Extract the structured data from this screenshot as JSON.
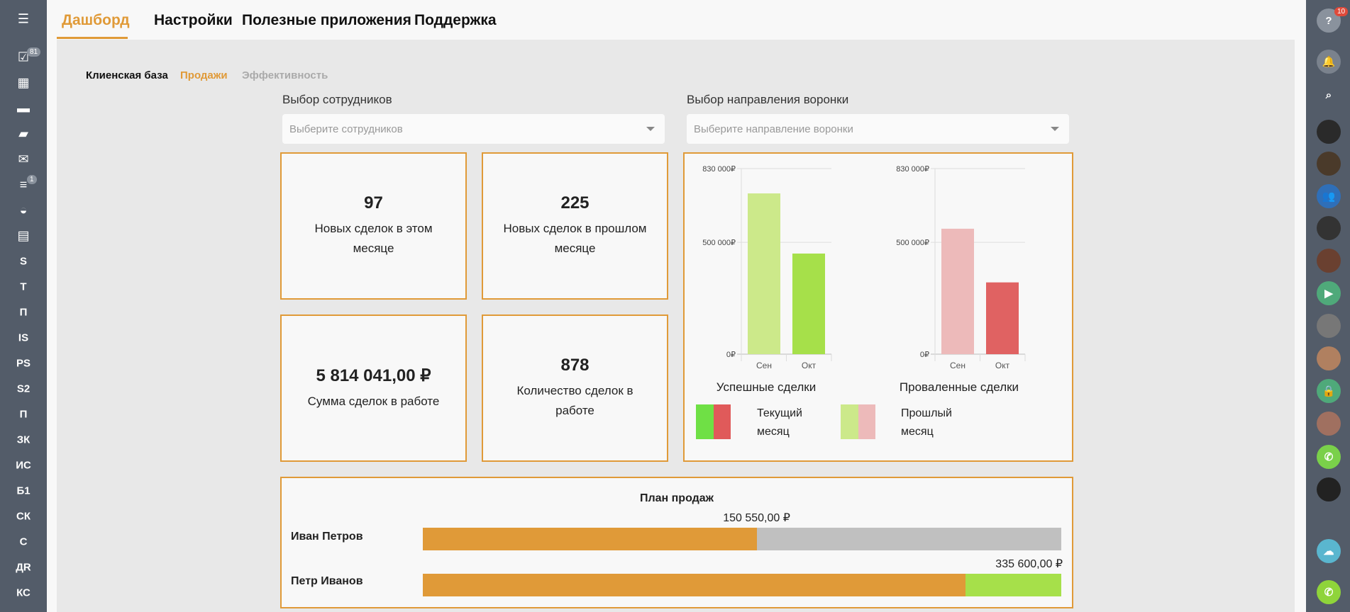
{
  "left_sidebar": {
    "items": [
      {
        "icon": "menu-icon",
        "label": ""
      },
      {
        "icon": "tasks-icon",
        "label": "",
        "badge": "81"
      },
      {
        "icon": "calendar-icon",
        "label": ""
      },
      {
        "icon": "drive-icon",
        "label": ""
      },
      {
        "icon": "chat-icon",
        "label": ""
      },
      {
        "icon": "mail-icon",
        "label": ""
      },
      {
        "icon": "filter-icon",
        "label": "",
        "badge": "1"
      },
      {
        "icon": "robot-icon",
        "label": ""
      },
      {
        "icon": "contact-card-icon",
        "label": ""
      },
      {
        "label": "S"
      },
      {
        "label": "T"
      },
      {
        "label": "П"
      },
      {
        "label": "IS"
      },
      {
        "label": "PS"
      },
      {
        "label": "S2"
      },
      {
        "label": "П"
      },
      {
        "label": "ЗК"
      },
      {
        "label": "ИС"
      },
      {
        "label": "Б1"
      },
      {
        "label": "СК"
      },
      {
        "label": "С"
      },
      {
        "label": "ДR"
      },
      {
        "label": "КС"
      }
    ]
  },
  "header": {
    "tabs": [
      {
        "label": "Дашборд",
        "active": true
      },
      {
        "label": "Настройки"
      },
      {
        "label": "Полезные приложения"
      },
      {
        "label": "Поддержка"
      }
    ],
    "accent": "#e09a38"
  },
  "subtabs": [
    {
      "label": "Клиенская база",
      "state": "normal"
    },
    {
      "label": "Продажи",
      "state": "active"
    },
    {
      "label": "Эффективность",
      "state": "disabled"
    }
  ],
  "filters": {
    "employees": {
      "label": "Выбор сотрудников",
      "placeholder": "Выберите сотрудников"
    },
    "funnel": {
      "label": "Выбор направления воронки",
      "placeholder": "Выберите направление воронки"
    }
  },
  "cards": [
    {
      "value": "97",
      "label": "Новых сделок в этом месяце"
    },
    {
      "value": "225",
      "label": "Новых сделок в прошлом месяце"
    },
    {
      "value": "5 814 041,00 ₽",
      "label": "Сумма сделок в работе"
    },
    {
      "value": "878",
      "label": "Количество сделок в работе"
    }
  ],
  "chart_data": [
    {
      "type": "bar",
      "title": "Успешные сделки",
      "categories": [
        "Сен",
        "Окт"
      ],
      "values": [
        719000,
        450000
      ],
      "colors": [
        "#cce98a",
        "#a6e04a"
      ],
      "ylim": [
        0,
        830000
      ],
      "yticks": [
        "0₽",
        "500 000₽",
        "830 000₽"
      ],
      "ytick_values": [
        0,
        500000,
        830000
      ],
      "grid": true
    },
    {
      "type": "bar",
      "title": "Проваленные сделки",
      "categories": [
        "Сен",
        "Окт"
      ],
      "values": [
        561000,
        321000
      ],
      "colors": [
        "#edbaba",
        "#e06262"
      ],
      "ylim": [
        0,
        830000
      ],
      "yticks": [
        "0₽",
        "500 000₽",
        "830 000₽"
      ],
      "ytick_values": [
        0,
        500000,
        830000
      ],
      "grid": true
    }
  ],
  "legend": [
    {
      "label": "Текущий месяц",
      "colors": [
        "#6fe045",
        "#e05a5a"
      ]
    },
    {
      "label": "Прошлый месяц",
      "colors": [
        "#cce98a",
        "#edbaba"
      ]
    }
  ],
  "sales_plan": {
    "title": "План продаж",
    "rows": [
      {
        "name": "Иван Петров",
        "amount": "150 550,00 ₽",
        "progress": 0.523,
        "rest_color": "#c0c0c0"
      },
      {
        "name": "Петр Иванов",
        "amount": "335 600,00 ₽",
        "progress": 0.85,
        "rest_color": "#a6e04a"
      }
    ],
    "bar_color": "#e09a38"
  },
  "right_sidebar": {
    "help_badge": "10",
    "items": [
      "help-icon",
      "bell-icon",
      "search-icon",
      "avatar",
      "avatar",
      "group-chat-icon",
      "avatar",
      "avatar",
      "video-call-icon",
      "avatar",
      "avatar",
      "lock-icon",
      "avatar",
      "phone-call-icon",
      "avatar",
      "device-cloud-icon",
      "phone-icon"
    ]
  }
}
